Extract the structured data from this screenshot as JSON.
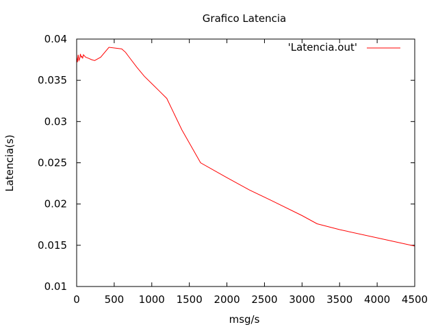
{
  "chart_data": {
    "type": "line",
    "title": "Grafico Latencia",
    "xlabel": "msg/s",
    "ylabel": "Latencia(s)",
    "xlim": [
      0,
      4500
    ],
    "ylim": [
      0.01,
      0.04
    ],
    "x_ticks": [
      0,
      500,
      1000,
      1500,
      2000,
      2500,
      3000,
      3500,
      4000,
      4500
    ],
    "y_ticks": [
      0.01,
      0.015,
      0.02,
      0.025,
      0.03,
      0.035,
      0.04
    ],
    "x_tick_labels": [
      "0",
      "500",
      "1000",
      "1500",
      "2000",
      "2500",
      "3000",
      "3500",
      "4000",
      "4500"
    ],
    "y_tick_labels": [
      "0.01",
      "0.015",
      "0.02",
      "0.025",
      "0.03",
      "0.035",
      "0.04"
    ],
    "grid": false,
    "legend_position": "top-right",
    "series": [
      {
        "name": "'Latencia.out'",
        "color": "#ff0000",
        "x": [
          0,
          10,
          20,
          30,
          40,
          50,
          60,
          70,
          80,
          90,
          100,
          120,
          150,
          200,
          240,
          320,
          430,
          520,
          600,
          650,
          700,
          800,
          900,
          1000,
          1100,
          1200,
          1400,
          1650,
          2000,
          2300,
          2600,
          3000,
          3200,
          3500,
          4000,
          4500
        ],
        "y": [
          0.0378,
          0.0372,
          0.0381,
          0.0374,
          0.0376,
          0.0382,
          0.0378,
          0.0379,
          0.0377,
          0.0381,
          0.038,
          0.0378,
          0.0377,
          0.0375,
          0.0374,
          0.0378,
          0.039,
          0.0389,
          0.0388,
          0.0384,
          0.0378,
          0.0366,
          0.0355,
          0.0346,
          0.0337,
          0.0328,
          0.029,
          0.025,
          0.0232,
          0.0217,
          0.0204,
          0.0186,
          0.0176,
          0.0169,
          0.0159,
          0.0149
        ]
      }
    ]
  }
}
